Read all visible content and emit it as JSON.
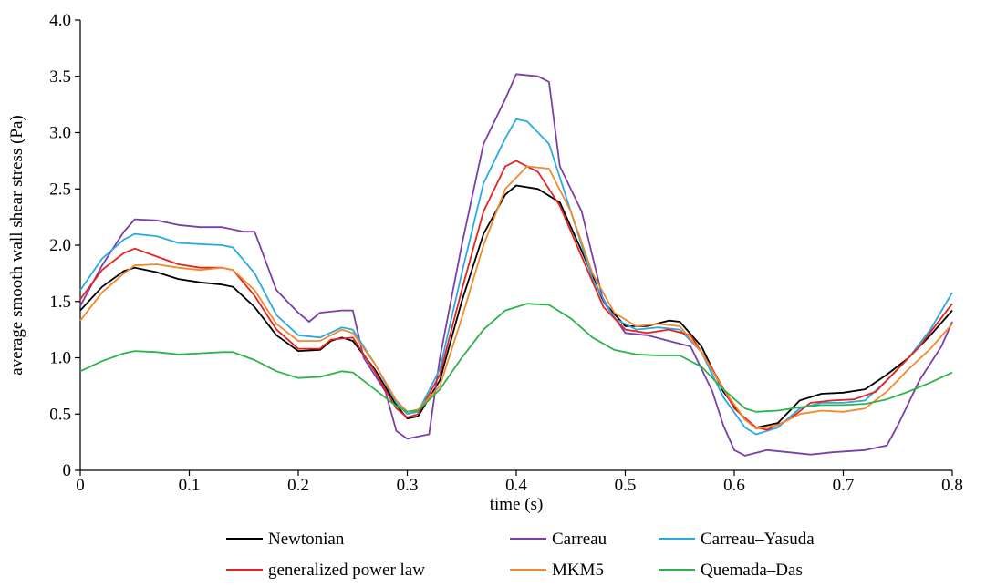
{
  "chart_data": {
    "type": "line",
    "xlabel": "time (s)",
    "ylabel": "average smooth wall shear stress (Pa)",
    "xlim": [
      0,
      0.8
    ],
    "ylim": [
      0,
      4.0
    ],
    "x_ticks": [
      "0",
      "0.1",
      "0.2",
      "0.3",
      "0.4",
      "0.5",
      "0.6",
      "0.7",
      "0.8"
    ],
    "y_ticks": [
      "0",
      "0.5",
      "1.0",
      "1.5",
      "2.0",
      "2.5",
      "3.0",
      "3.5",
      "4.0"
    ],
    "grid": false,
    "legend_position": "bottom",
    "series": [
      {
        "name": "Newtonian",
        "color": "#000000",
        "points": [
          [
            0,
            1.42
          ],
          [
            0.02,
            1.63
          ],
          [
            0.04,
            1.77
          ],
          [
            0.05,
            1.8
          ],
          [
            0.07,
            1.76
          ],
          [
            0.09,
            1.7
          ],
          [
            0.11,
            1.67
          ],
          [
            0.13,
            1.65
          ],
          [
            0.14,
            1.63
          ],
          [
            0.16,
            1.45
          ],
          [
            0.18,
            1.2
          ],
          [
            0.2,
            1.06
          ],
          [
            0.22,
            1.07
          ],
          [
            0.23,
            1.15
          ],
          [
            0.24,
            1.18
          ],
          [
            0.25,
            1.15
          ],
          [
            0.27,
            0.9
          ],
          [
            0.29,
            0.58
          ],
          [
            0.3,
            0.46
          ],
          [
            0.31,
            0.48
          ],
          [
            0.33,
            0.8
          ],
          [
            0.35,
            1.5
          ],
          [
            0.37,
            2.1
          ],
          [
            0.39,
            2.45
          ],
          [
            0.4,
            2.53
          ],
          [
            0.42,
            2.5
          ],
          [
            0.44,
            2.38
          ],
          [
            0.46,
            1.95
          ],
          [
            0.48,
            1.5
          ],
          [
            0.5,
            1.28
          ],
          [
            0.52,
            1.28
          ],
          [
            0.54,
            1.33
          ],
          [
            0.55,
            1.32
          ],
          [
            0.57,
            1.1
          ],
          [
            0.59,
            0.7
          ],
          [
            0.61,
            0.45
          ],
          [
            0.62,
            0.38
          ],
          [
            0.64,
            0.42
          ],
          [
            0.66,
            0.62
          ],
          [
            0.68,
            0.68
          ],
          [
            0.7,
            0.69
          ],
          [
            0.72,
            0.72
          ],
          [
            0.74,
            0.85
          ],
          [
            0.76,
            1.0
          ],
          [
            0.78,
            1.2
          ],
          [
            0.8,
            1.42
          ]
        ]
      },
      {
        "name": "Carreau",
        "color": "#7b3fa8",
        "points": [
          [
            0,
            1.46
          ],
          [
            0.02,
            1.82
          ],
          [
            0.04,
            2.12
          ],
          [
            0.05,
            2.23
          ],
          [
            0.07,
            2.22
          ],
          [
            0.09,
            2.18
          ],
          [
            0.11,
            2.16
          ],
          [
            0.13,
            2.16
          ],
          [
            0.15,
            2.12
          ],
          [
            0.16,
            2.12
          ],
          [
            0.18,
            1.6
          ],
          [
            0.2,
            1.4
          ],
          [
            0.21,
            1.32
          ],
          [
            0.22,
            1.4
          ],
          [
            0.24,
            1.42
          ],
          [
            0.25,
            1.42
          ],
          [
            0.26,
            1.0
          ],
          [
            0.28,
            0.7
          ],
          [
            0.29,
            0.35
          ],
          [
            0.3,
            0.28
          ],
          [
            0.31,
            0.3
          ],
          [
            0.32,
            0.32
          ],
          [
            0.33,
            1.0
          ],
          [
            0.35,
            2.0
          ],
          [
            0.37,
            2.9
          ],
          [
            0.39,
            3.3
          ],
          [
            0.4,
            3.52
          ],
          [
            0.42,
            3.5
          ],
          [
            0.43,
            3.45
          ],
          [
            0.44,
            2.7
          ],
          [
            0.46,
            2.3
          ],
          [
            0.48,
            1.5
          ],
          [
            0.5,
            1.22
          ],
          [
            0.52,
            1.2
          ],
          [
            0.54,
            1.15
          ],
          [
            0.56,
            1.1
          ],
          [
            0.58,
            0.7
          ],
          [
            0.59,
            0.4
          ],
          [
            0.6,
            0.18
          ],
          [
            0.61,
            0.13
          ],
          [
            0.63,
            0.18
          ],
          [
            0.65,
            0.16
          ],
          [
            0.67,
            0.14
          ],
          [
            0.69,
            0.16
          ],
          [
            0.72,
            0.18
          ],
          [
            0.74,
            0.22
          ],
          [
            0.75,
            0.4
          ],
          [
            0.77,
            0.8
          ],
          [
            0.79,
            1.1
          ],
          [
            0.8,
            1.32
          ]
        ]
      },
      {
        "name": "Carreau–Yasuda",
        "color": "#2aaae2",
        "points": [
          [
            0,
            1.6
          ],
          [
            0.02,
            1.88
          ],
          [
            0.04,
            2.05
          ],
          [
            0.05,
            2.1
          ],
          [
            0.07,
            2.08
          ],
          [
            0.09,
            2.02
          ],
          [
            0.11,
            2.01
          ],
          [
            0.13,
            2.0
          ],
          [
            0.14,
            1.98
          ],
          [
            0.16,
            1.75
          ],
          [
            0.18,
            1.38
          ],
          [
            0.2,
            1.2
          ],
          [
            0.22,
            1.18
          ],
          [
            0.24,
            1.27
          ],
          [
            0.25,
            1.25
          ],
          [
            0.27,
            0.95
          ],
          [
            0.29,
            0.6
          ],
          [
            0.3,
            0.5
          ],
          [
            0.31,
            0.52
          ],
          [
            0.33,
            0.9
          ],
          [
            0.35,
            1.75
          ],
          [
            0.37,
            2.55
          ],
          [
            0.39,
            2.95
          ],
          [
            0.4,
            3.12
          ],
          [
            0.41,
            3.1
          ],
          [
            0.43,
            2.9
          ],
          [
            0.45,
            2.3
          ],
          [
            0.47,
            1.7
          ],
          [
            0.49,
            1.35
          ],
          [
            0.51,
            1.25
          ],
          [
            0.53,
            1.27
          ],
          [
            0.55,
            1.25
          ],
          [
            0.57,
            1.05
          ],
          [
            0.59,
            0.65
          ],
          [
            0.61,
            0.38
          ],
          [
            0.62,
            0.32
          ],
          [
            0.64,
            0.38
          ],
          [
            0.66,
            0.55
          ],
          [
            0.68,
            0.6
          ],
          [
            0.7,
            0.6
          ],
          [
            0.72,
            0.62
          ],
          [
            0.74,
            0.8
          ],
          [
            0.76,
            1.0
          ],
          [
            0.78,
            1.25
          ],
          [
            0.8,
            1.58
          ]
        ]
      },
      {
        "name": "generalized power law",
        "color": "#e52421",
        "points": [
          [
            0,
            1.52
          ],
          [
            0.02,
            1.78
          ],
          [
            0.04,
            1.93
          ],
          [
            0.05,
            1.97
          ],
          [
            0.07,
            1.9
          ],
          [
            0.09,
            1.83
          ],
          [
            0.11,
            1.8
          ],
          [
            0.13,
            1.8
          ],
          [
            0.14,
            1.78
          ],
          [
            0.16,
            1.55
          ],
          [
            0.18,
            1.25
          ],
          [
            0.2,
            1.08
          ],
          [
            0.22,
            1.08
          ],
          [
            0.23,
            1.16
          ],
          [
            0.25,
            1.18
          ],
          [
            0.27,
            0.88
          ],
          [
            0.29,
            0.55
          ],
          [
            0.3,
            0.47
          ],
          [
            0.31,
            0.5
          ],
          [
            0.33,
            0.85
          ],
          [
            0.35,
            1.6
          ],
          [
            0.37,
            2.3
          ],
          [
            0.39,
            2.7
          ],
          [
            0.4,
            2.75
          ],
          [
            0.42,
            2.65
          ],
          [
            0.44,
            2.35
          ],
          [
            0.46,
            1.9
          ],
          [
            0.48,
            1.45
          ],
          [
            0.5,
            1.25
          ],
          [
            0.52,
            1.22
          ],
          [
            0.54,
            1.25
          ],
          [
            0.56,
            1.2
          ],
          [
            0.58,
            0.9
          ],
          [
            0.6,
            0.55
          ],
          [
            0.62,
            0.38
          ],
          [
            0.63,
            0.36
          ],
          [
            0.65,
            0.45
          ],
          [
            0.67,
            0.6
          ],
          [
            0.69,
            0.62
          ],
          [
            0.71,
            0.63
          ],
          [
            0.73,
            0.7
          ],
          [
            0.75,
            0.9
          ],
          [
            0.77,
            1.1
          ],
          [
            0.8,
            1.48
          ]
        ]
      },
      {
        "name": "MKM5",
        "color": "#f08a2c",
        "points": [
          [
            0,
            1.33
          ],
          [
            0.02,
            1.58
          ],
          [
            0.04,
            1.75
          ],
          [
            0.05,
            1.82
          ],
          [
            0.07,
            1.83
          ],
          [
            0.09,
            1.8
          ],
          [
            0.11,
            1.78
          ],
          [
            0.13,
            1.8
          ],
          [
            0.14,
            1.78
          ],
          [
            0.16,
            1.6
          ],
          [
            0.18,
            1.3
          ],
          [
            0.2,
            1.15
          ],
          [
            0.22,
            1.15
          ],
          [
            0.24,
            1.25
          ],
          [
            0.25,
            1.22
          ],
          [
            0.27,
            0.95
          ],
          [
            0.29,
            0.62
          ],
          [
            0.3,
            0.52
          ],
          [
            0.31,
            0.54
          ],
          [
            0.33,
            0.75
          ],
          [
            0.35,
            1.35
          ],
          [
            0.37,
            2.0
          ],
          [
            0.39,
            2.5
          ],
          [
            0.41,
            2.7
          ],
          [
            0.43,
            2.68
          ],
          [
            0.45,
            2.3
          ],
          [
            0.47,
            1.75
          ],
          [
            0.49,
            1.4
          ],
          [
            0.51,
            1.28
          ],
          [
            0.53,
            1.3
          ],
          [
            0.55,
            1.28
          ],
          [
            0.57,
            1.05
          ],
          [
            0.59,
            0.72
          ],
          [
            0.61,
            0.45
          ],
          [
            0.62,
            0.37
          ],
          [
            0.64,
            0.4
          ],
          [
            0.66,
            0.5
          ],
          [
            0.68,
            0.53
          ],
          [
            0.7,
            0.52
          ],
          [
            0.72,
            0.55
          ],
          [
            0.74,
            0.7
          ],
          [
            0.76,
            0.9
          ],
          [
            0.78,
            1.08
          ],
          [
            0.8,
            1.3
          ]
        ]
      },
      {
        "name": "Quemada–Das",
        "color": "#2db34a",
        "points": [
          [
            0,
            0.88
          ],
          [
            0.02,
            0.97
          ],
          [
            0.04,
            1.04
          ],
          [
            0.05,
            1.06
          ],
          [
            0.07,
            1.05
          ],
          [
            0.09,
            1.03
          ],
          [
            0.11,
            1.04
          ],
          [
            0.13,
            1.05
          ],
          [
            0.14,
            1.05
          ],
          [
            0.16,
            0.98
          ],
          [
            0.18,
            0.88
          ],
          [
            0.2,
            0.82
          ],
          [
            0.22,
            0.83
          ],
          [
            0.24,
            0.88
          ],
          [
            0.25,
            0.87
          ],
          [
            0.27,
            0.72
          ],
          [
            0.29,
            0.57
          ],
          [
            0.3,
            0.52
          ],
          [
            0.31,
            0.53
          ],
          [
            0.33,
            0.72
          ],
          [
            0.35,
            1.0
          ],
          [
            0.37,
            1.25
          ],
          [
            0.39,
            1.42
          ],
          [
            0.41,
            1.48
          ],
          [
            0.43,
            1.47
          ],
          [
            0.45,
            1.35
          ],
          [
            0.47,
            1.18
          ],
          [
            0.49,
            1.07
          ],
          [
            0.51,
            1.03
          ],
          [
            0.53,
            1.02
          ],
          [
            0.55,
            1.02
          ],
          [
            0.57,
            0.92
          ],
          [
            0.59,
            0.72
          ],
          [
            0.61,
            0.55
          ],
          [
            0.62,
            0.52
          ],
          [
            0.64,
            0.53
          ],
          [
            0.66,
            0.56
          ],
          [
            0.68,
            0.58
          ],
          [
            0.7,
            0.58
          ],
          [
            0.72,
            0.59
          ],
          [
            0.74,
            0.63
          ],
          [
            0.76,
            0.7
          ],
          [
            0.78,
            0.78
          ],
          [
            0.8,
            0.87
          ]
        ]
      }
    ]
  }
}
